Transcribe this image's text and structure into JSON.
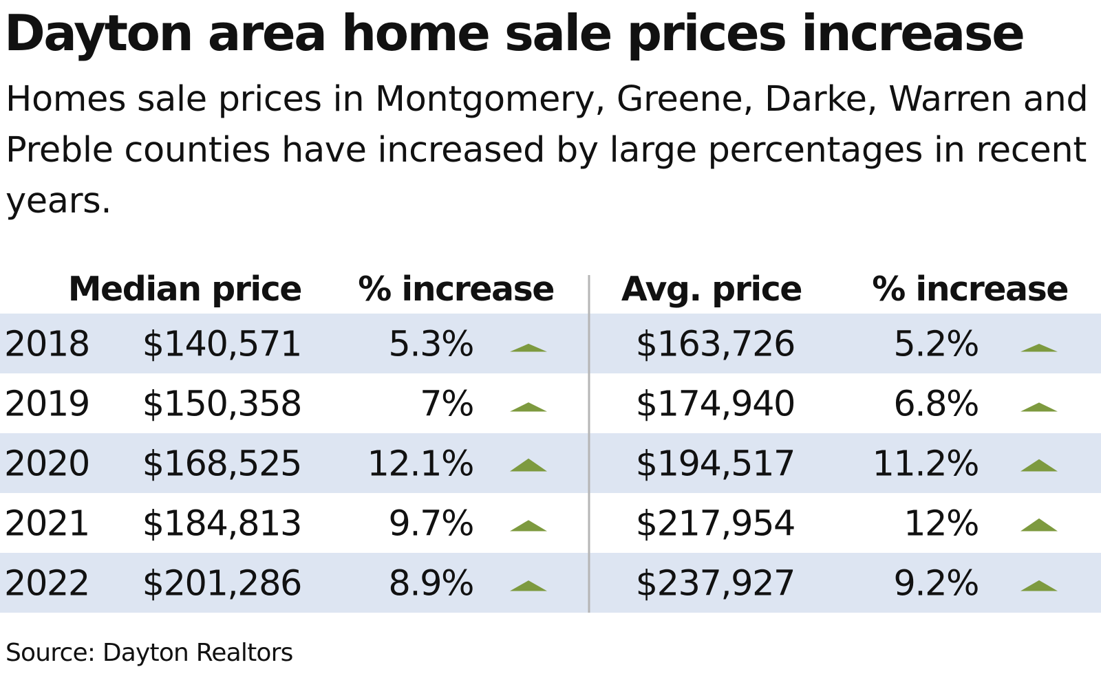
{
  "title": "Dayton area home sale prices increase",
  "subtitle": "Homes sale prices in Montgomery, Greene, Darke, Warren and Preble counties have increased by large percentages in recent years.",
  "source": "Source: Dayton Realtors",
  "colors": {
    "band": "#dde5f2",
    "arrow": "#7d9a3f",
    "divider": "#b5b5b5",
    "text": "#111111"
  },
  "icons": {
    "increase": "triangle-up-icon"
  },
  "chart_data": {
    "type": "table",
    "columns": [
      "",
      "Median price",
      "% increase",
      "",
      "Avg. price",
      "% increase",
      ""
    ],
    "rows": [
      {
        "year": "2018",
        "median_price": "$140,571",
        "median_increase": "5.3%",
        "median_increase_value": 5.3,
        "avg_price": "$163,726",
        "avg_increase": "5.2%",
        "avg_increase_value": 5.2
      },
      {
        "year": "2019",
        "median_price": "$150,358",
        "median_increase": "7%",
        "median_increase_value": 7,
        "avg_price": "$174,940",
        "avg_increase": "6.8%",
        "avg_increase_value": 6.8
      },
      {
        "year": "2020",
        "median_price": "$168,525",
        "median_increase": "12.1%",
        "median_increase_value": 12.1,
        "avg_price": "$194,517",
        "avg_increase": "11.2%",
        "avg_increase_value": 11.2
      },
      {
        "year": "2021",
        "median_price": "$184,813",
        "median_increase": "9.7%",
        "median_increase_value": 9.7,
        "avg_price": "$217,954",
        "avg_increase": "12%",
        "avg_increase_value": 12
      },
      {
        "year": "2022",
        "median_price": "$201,286",
        "median_increase": "8.9%",
        "median_increase_value": 8.9,
        "avg_price": "$237,927",
        "avg_increase": "9.2%",
        "avg_increase_value": 9.2
      }
    ]
  }
}
